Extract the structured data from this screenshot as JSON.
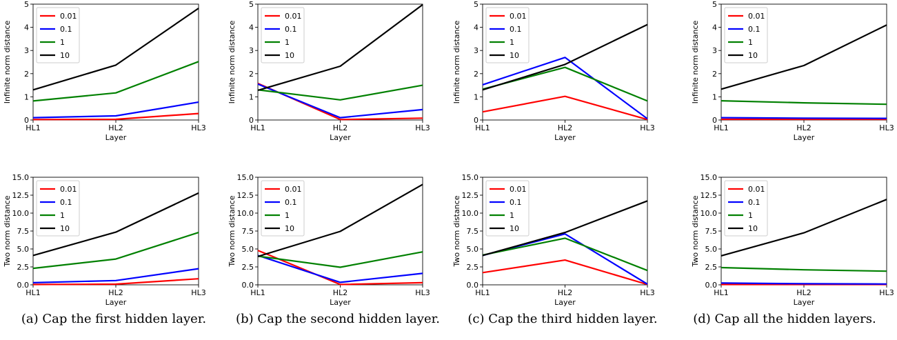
{
  "colors": {
    "0.01": "#ff0000",
    "0.1": "#0000ff",
    "1": "#008000",
    "10": "#000000"
  },
  "panels": [
    {
      "caption": "(a) Cap the first hidden layer."
    },
    {
      "caption": "(b) Cap the second hidden layer."
    },
    {
      "caption": "(c) Cap the third hidden layer."
    },
    {
      "caption": "(d) Cap all the hidden layers."
    }
  ],
  "chart_data": [
    {
      "type": "line",
      "panel": "a",
      "metric": "infinite",
      "categories": [
        "HL1",
        "HL2",
        "HL3"
      ],
      "xlabel": "Layer",
      "ylabel": "Infinite norm distance",
      "ylim": [
        0,
        5
      ],
      "yticks": [
        "0",
        "1",
        "2",
        "3",
        "4",
        "5"
      ],
      "legend": "top-left",
      "series": [
        {
          "name": "0.01",
          "values": [
            0.02,
            0.03,
            0.28
          ]
        },
        {
          "name": "0.1",
          "values": [
            0.1,
            0.18,
            0.77
          ]
        },
        {
          "name": "1",
          "values": [
            0.82,
            1.17,
            2.52
          ]
        },
        {
          "name": "10",
          "values": [
            1.3,
            2.37,
            4.82
          ]
        }
      ]
    },
    {
      "type": "line",
      "panel": "b",
      "metric": "infinite",
      "categories": [
        "HL1",
        "HL2",
        "HL3"
      ],
      "xlabel": "Layer",
      "ylabel": "Infinite norm distance",
      "ylim": [
        0,
        5
      ],
      "yticks": [
        "0",
        "1",
        "2",
        "3",
        "4",
        "5"
      ],
      "legend": "top-left",
      "series": [
        {
          "name": "0.01",
          "values": [
            1.58,
            0.02,
            0.08
          ]
        },
        {
          "name": "0.1",
          "values": [
            1.55,
            0.1,
            0.45
          ]
        },
        {
          "name": "1",
          "values": [
            1.3,
            0.87,
            1.5
          ]
        },
        {
          "name": "10",
          "values": [
            1.28,
            2.32,
            4.98
          ]
        }
      ]
    },
    {
      "type": "line",
      "panel": "c",
      "metric": "infinite",
      "categories": [
        "HL1",
        "HL2",
        "HL3"
      ],
      "xlabel": "Layer",
      "ylabel": "Infinite norm distance",
      "ylim": [
        0,
        5
      ],
      "yticks": [
        "0",
        "1",
        "2",
        "3",
        "4",
        "5"
      ],
      "legend": "top-left",
      "series": [
        {
          "name": "0.01",
          "values": [
            0.35,
            1.02,
            0.02
          ]
        },
        {
          "name": "0.1",
          "values": [
            1.52,
            2.7,
            0.05
          ]
        },
        {
          "name": "1",
          "values": [
            1.33,
            2.27,
            0.82
          ]
        },
        {
          "name": "10",
          "values": [
            1.3,
            2.4,
            4.12
          ]
        }
      ]
    },
    {
      "type": "line",
      "panel": "d",
      "metric": "infinite",
      "categories": [
        "HL1",
        "HL2",
        "HL3"
      ],
      "xlabel": "Layer",
      "ylabel": "Infinite norm distance",
      "ylim": [
        0,
        5
      ],
      "yticks": [
        "0",
        "1",
        "2",
        "3",
        "4",
        "5"
      ],
      "legend": "top-left",
      "series": [
        {
          "name": "0.01",
          "values": [
            0.03,
            0.03,
            0.03
          ]
        },
        {
          "name": "0.1",
          "values": [
            0.1,
            0.08,
            0.07
          ]
        },
        {
          "name": "1",
          "values": [
            0.83,
            0.74,
            0.68
          ]
        },
        {
          "name": "10",
          "values": [
            1.33,
            2.35,
            4.1
          ]
        }
      ]
    },
    {
      "type": "line",
      "panel": "a",
      "metric": "two",
      "categories": [
        "HL1",
        "HL2",
        "HL3"
      ],
      "xlabel": "Layer",
      "ylabel": "Two norm distance",
      "ylim": [
        0,
        15
      ],
      "yticks": [
        "0.0",
        "2.5",
        "5.0",
        "7.5",
        "10.0",
        "12.5",
        "15.0"
      ],
      "legend": "top-left",
      "series": [
        {
          "name": "0.01",
          "values": [
            0.05,
            0.1,
            0.85
          ]
        },
        {
          "name": "0.1",
          "values": [
            0.3,
            0.6,
            2.25
          ]
        },
        {
          "name": "1",
          "values": [
            2.3,
            3.6,
            7.3
          ]
        },
        {
          "name": "10",
          "values": [
            4.1,
            7.35,
            12.8
          ]
        }
      ]
    },
    {
      "type": "line",
      "panel": "b",
      "metric": "two",
      "categories": [
        "HL1",
        "HL2",
        "HL3"
      ],
      "xlabel": "Layer",
      "ylabel": "Two norm distance",
      "ylim": [
        0,
        15
      ],
      "yticks": [
        "0.0",
        "2.5",
        "5.0",
        "7.5",
        "10.0",
        "12.5",
        "15.0"
      ],
      "legend": "top-left",
      "series": [
        {
          "name": "0.01",
          "values": [
            4.8,
            0.05,
            0.3
          ]
        },
        {
          "name": "0.1",
          "values": [
            4.1,
            0.35,
            1.6
          ]
        },
        {
          "name": "1",
          "values": [
            4.0,
            2.45,
            4.6
          ]
        },
        {
          "name": "10",
          "values": [
            3.95,
            7.45,
            14.0
          ]
        }
      ]
    },
    {
      "type": "line",
      "panel": "c",
      "metric": "two",
      "categories": [
        "HL1",
        "HL2",
        "HL3"
      ],
      "xlabel": "Layer",
      "ylabel": "Two norm distance",
      "ylim": [
        0,
        15
      ],
      "yticks": [
        "0.0",
        "2.5",
        "5.0",
        "7.5",
        "10.0",
        "12.5",
        "15.0"
      ],
      "legend": "top-left",
      "series": [
        {
          "name": "0.01",
          "values": [
            1.7,
            3.45,
            0.05
          ]
        },
        {
          "name": "0.1",
          "values": [
            4.1,
            7.1,
            0.1
          ]
        },
        {
          "name": "1",
          "values": [
            4.15,
            6.5,
            2.0
          ]
        },
        {
          "name": "10",
          "values": [
            4.1,
            7.3,
            11.7
          ]
        }
      ]
    },
    {
      "type": "line",
      "panel": "d",
      "metric": "two",
      "categories": [
        "HL1",
        "HL2",
        "HL3"
      ],
      "xlabel": "Layer",
      "ylabel": "Two norm distance",
      "ylim": [
        0,
        15
      ],
      "yticks": [
        "0.0",
        "2.5",
        "5.0",
        "7.5",
        "10.0",
        "12.5",
        "15.0"
      ],
      "legend": "top-left",
      "series": [
        {
          "name": "0.01",
          "values": [
            0.05,
            0.05,
            0.05
          ]
        },
        {
          "name": "0.1",
          "values": [
            0.25,
            0.15,
            0.12
          ]
        },
        {
          "name": "1",
          "values": [
            2.4,
            2.1,
            1.9
          ]
        },
        {
          "name": "10",
          "values": [
            4.05,
            7.25,
            11.9
          ]
        }
      ]
    }
  ]
}
